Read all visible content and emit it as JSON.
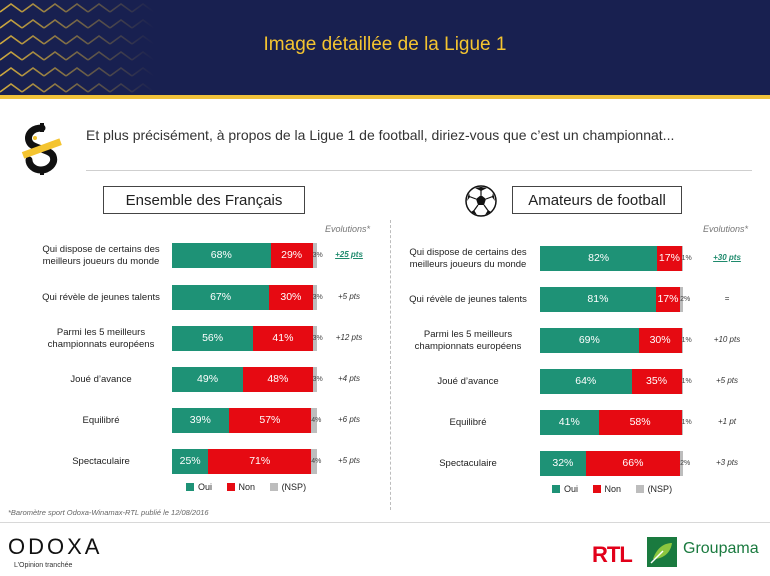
{
  "header": {
    "title": "Image détaillée de la Ligue 1"
  },
  "question": "Et plus précisément, à propos de la Ligue 1 de football, diriez-vous que c’est un championnat...",
  "colors": {
    "oui": "#1e9276",
    "non": "#e60a12",
    "nsp": "#bdbdbd",
    "header_bg": "#182050",
    "accent": "#f4c430"
  },
  "chart_data": [
    {
      "type": "bar",
      "orientation": "horizontal",
      "stacked": true,
      "title": "Ensemble des Français",
      "categories": [
        "Qui dispose de certains des meilleurs joueurs du monde",
        "Qui révèle de jeunes talents",
        "Parmi les 5 meilleurs championnats européens",
        "Joué d’avance",
        "Equilibré",
        "Spectaculaire"
      ],
      "series": [
        {
          "name": "Oui",
          "values": [
            68,
            67,
            56,
            49,
            39,
            25
          ],
          "labels": [
            "68%",
            "67%",
            "56%",
            "49%",
            "39%",
            "25%"
          ]
        },
        {
          "name": "Non",
          "values": [
            29,
            30,
            41,
            48,
            57,
            71
          ],
          "labels": [
            "29%",
            "30%",
            "41%",
            "48%",
            "57%",
            "71%"
          ]
        },
        {
          "name": "(NSP)",
          "values": [
            3,
            3,
            3,
            3,
            4,
            4
          ],
          "labels": [
            "3%",
            "3%",
            "3%",
            "3%",
            "4%",
            "4%"
          ]
        }
      ],
      "evolutions_label": "Evolutions*",
      "evolutions": [
        "+25 pts",
        "+5 pts",
        "+12 pts",
        "+4 pts",
        "+6 pts",
        "+5 pts"
      ],
      "xlim": [
        0,
        100
      ]
    },
    {
      "type": "bar",
      "orientation": "horizontal",
      "stacked": true,
      "title": "Amateurs de football",
      "categories": [
        "Qui dispose de certains des meilleurs joueurs du monde",
        "Qui révèle de jeunes talents",
        "Parmi les 5 meilleurs championnats européens",
        "Joué d’avance",
        "Equilibré",
        "Spectaculaire"
      ],
      "series": [
        {
          "name": "Oui",
          "values": [
            82,
            81,
            69,
            64,
            41,
            32
          ],
          "labels": [
            "82%",
            "81%",
            "69%",
            "64%",
            "41%",
            "32%"
          ]
        },
        {
          "name": "Non",
          "values": [
            17,
            17,
            30,
            35,
            58,
            66
          ],
          "labels": [
            "17%",
            "17%",
            "30%",
            "35%",
            "58%",
            "66%"
          ]
        },
        {
          "name": "(NSP)",
          "values": [
            1,
            2,
            1,
            1,
            1,
            2
          ],
          "labels": [
            "1%",
            "2%",
            "1%",
            "1%",
            "1%",
            "2%"
          ]
        }
      ],
      "evolutions_label": "Evolutions*",
      "evolutions": [
        "+30 pts",
        "=",
        "+10 pts",
        "+5 pts",
        "+1 pt",
        "+3 pts"
      ],
      "xlim": [
        0,
        100
      ]
    }
  ],
  "legend": [
    "Oui",
    "Non",
    "(NSP)"
  ],
  "footnote": "*Baromètre sport Odoxa-Winamax-RTL publié le 12/08/2016",
  "footer": {
    "brand": "ODOXA",
    "tagline": "L’Opinion tranchée",
    "partner1": "RTL",
    "partner2": "Groupama"
  }
}
